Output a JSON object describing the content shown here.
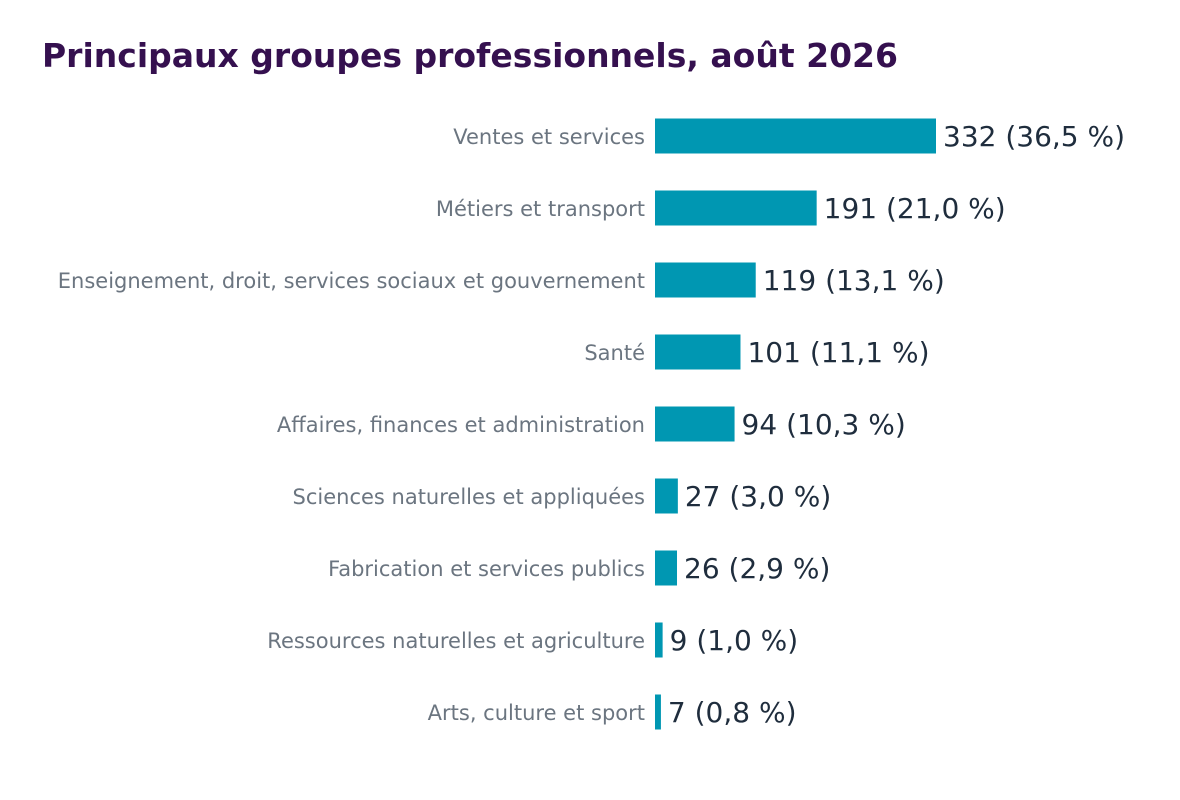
{
  "chart_data": {
    "type": "bar",
    "orientation": "horizontal",
    "title": "Principaux groupes professionnels, août 2026",
    "categories": [
      "Ventes et services",
      "Métiers et transport",
      "Enseignement, droit, services sociaux et gouvernement",
      "Santé",
      "Affaires, finances et administration",
      "Sciences naturelles et appliquées",
      "Fabrication et services publics",
      "Ressources naturelles et agriculture",
      "Arts, culture et sport"
    ],
    "values": [
      332,
      191,
      119,
      101,
      94,
      27,
      26,
      9,
      7
    ],
    "data_labels": [
      "332  (36,5 %)",
      "191  (21,0 %)",
      "119  (13,1 %)",
      "101  (11,1 %)",
      "94  (10,3 %)",
      "27  (3,0 %)",
      "26  (2,9 %)",
      "9  (1,0 %)",
      "7  (0,8 %)"
    ],
    "xlabel": "",
    "ylabel": "",
    "xlim": [
      0,
      332
    ],
    "grid": false,
    "legend": "none",
    "bar_color": "#0097b2",
    "title_color": "#35104f"
  }
}
